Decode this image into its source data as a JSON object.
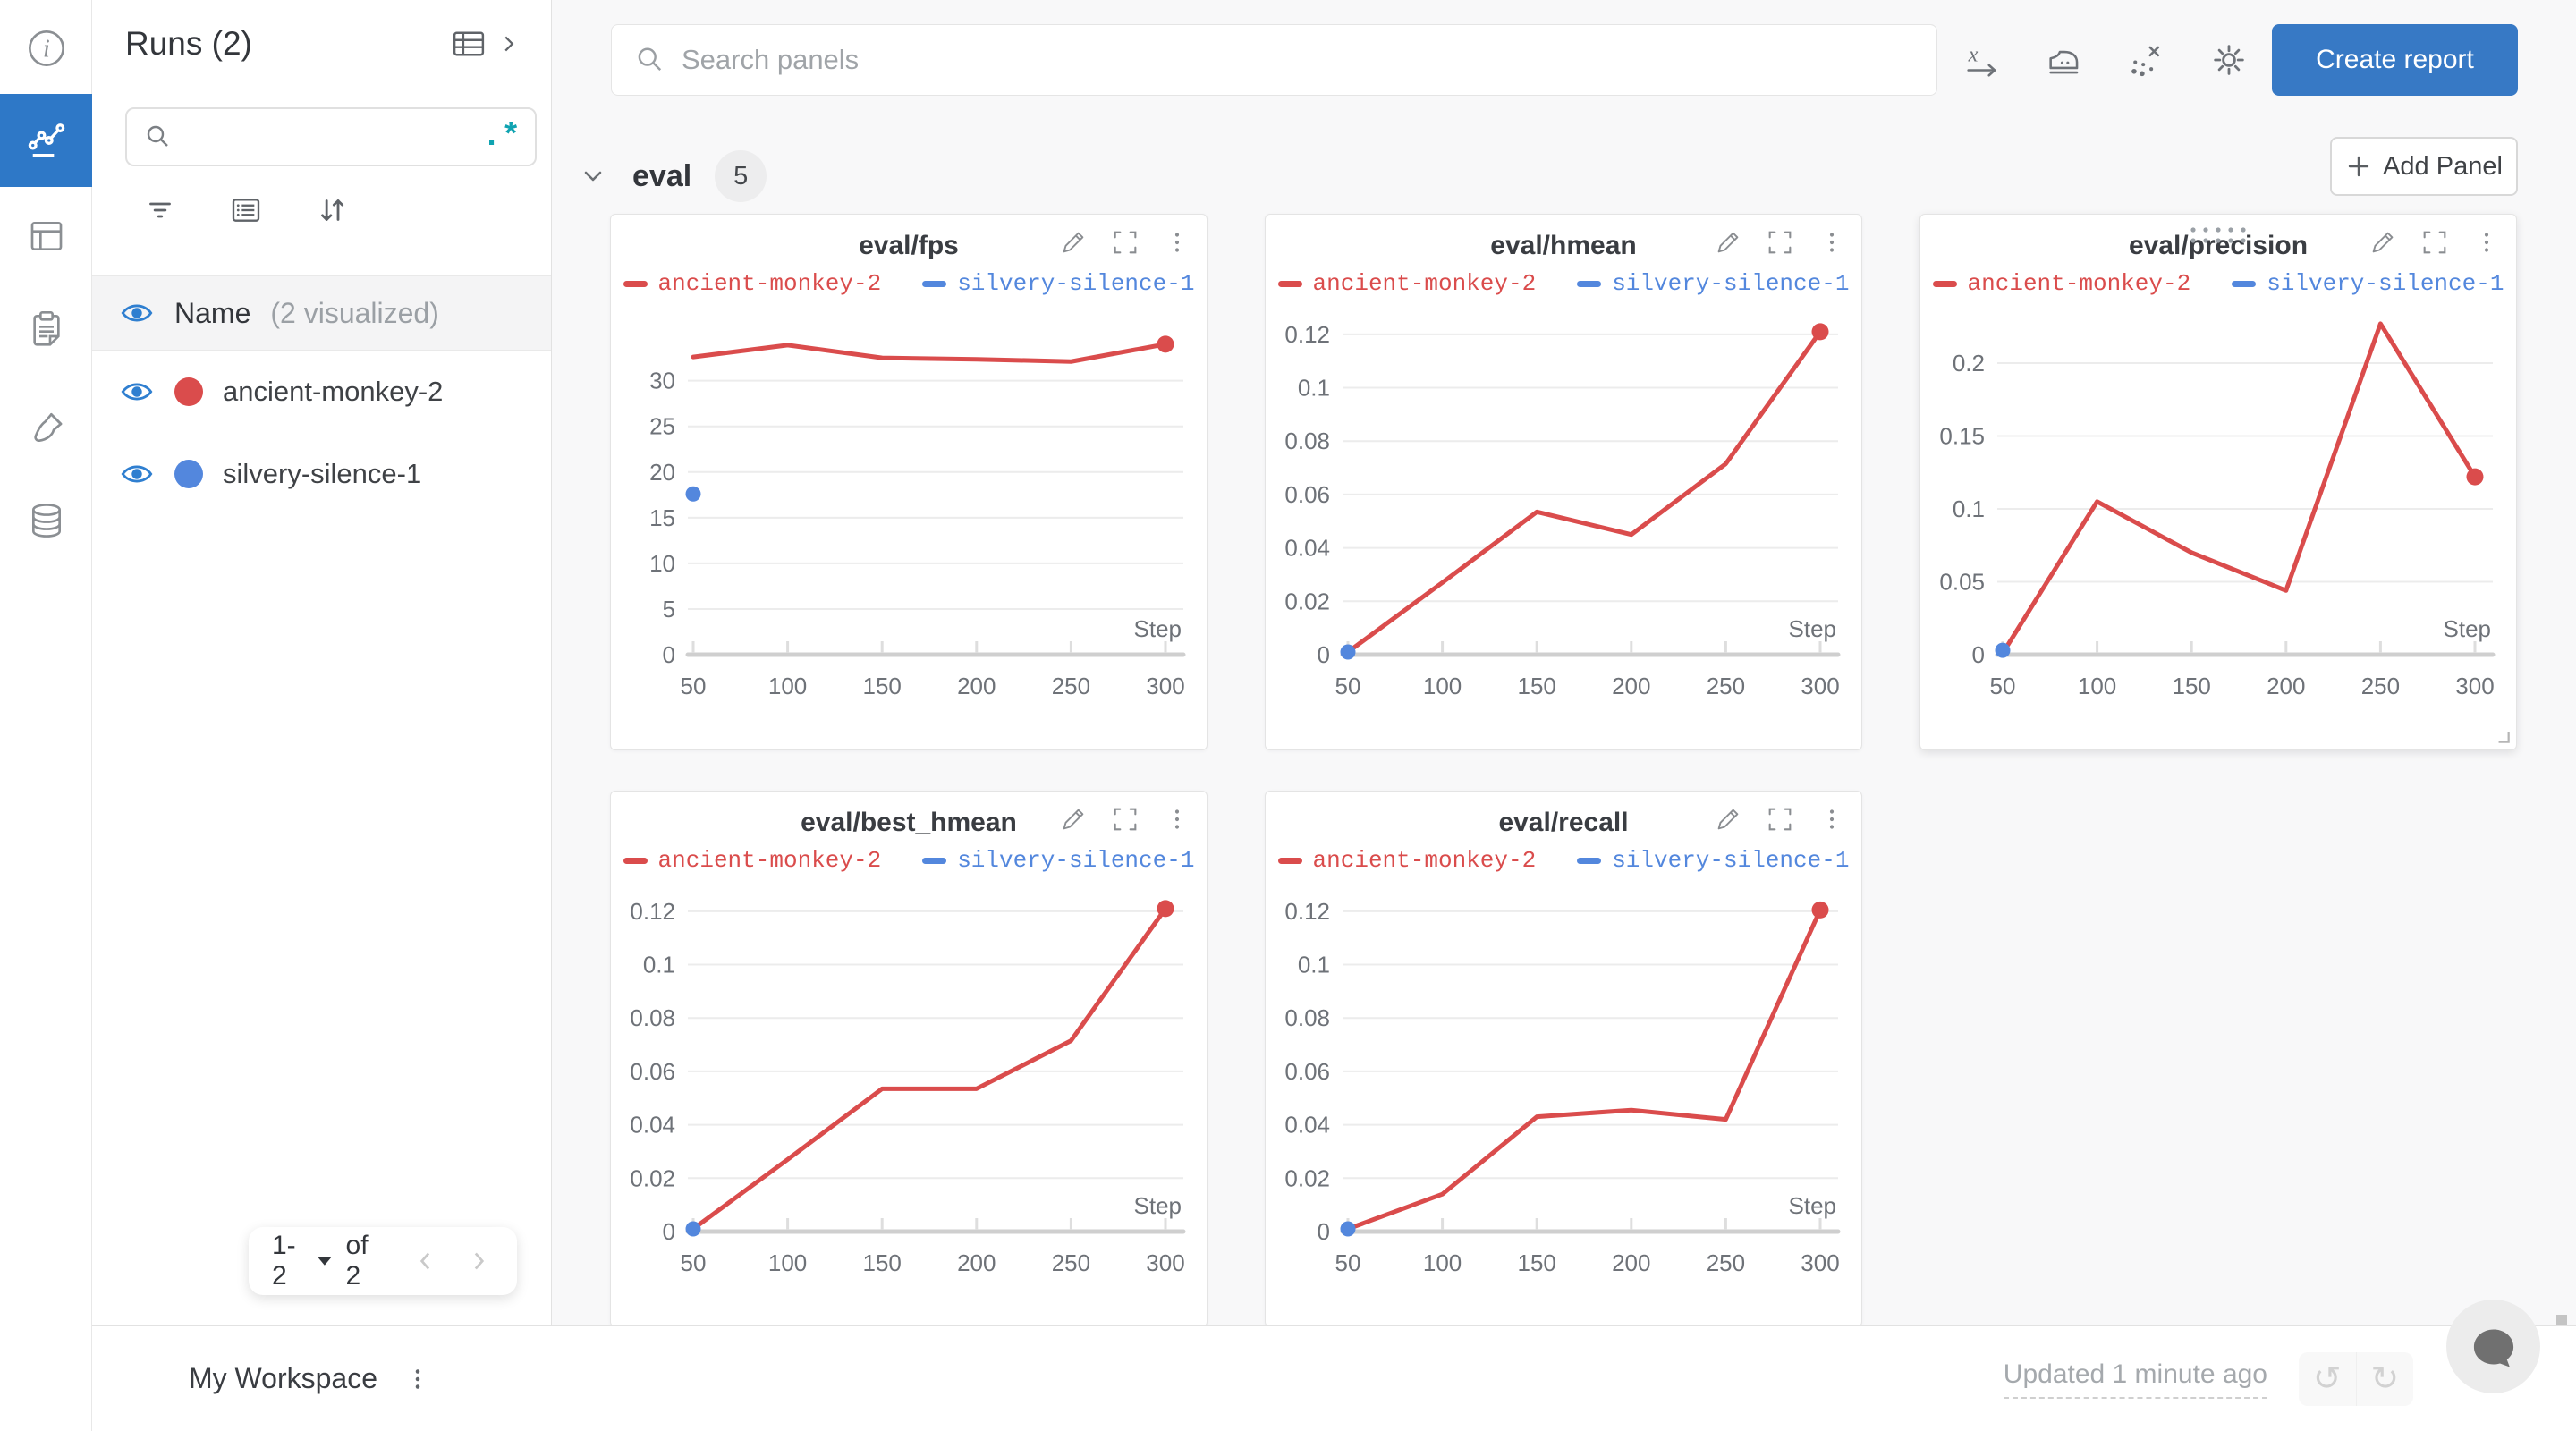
{
  "rail": {
    "items": [
      "info",
      "workspace-charts",
      "table",
      "logs",
      "sweeps-brush",
      "artifacts-database"
    ],
    "active_index": 1,
    "active_color": "#2e78c7"
  },
  "sidebar": {
    "title": "Runs (2)",
    "search_value": "",
    "regex_label": ".*",
    "visible_header": {
      "label": "Name",
      "sublabel": "(2 visualized)"
    },
    "runs": [
      {
        "name": "ancient-monkey-2",
        "color": "#da4c4c"
      },
      {
        "name": "silvery-silence-1",
        "color": "#5387dd"
      }
    ],
    "pagination": {
      "range": "1-2",
      "of": "of 2"
    }
  },
  "topbar": {
    "search_placeholder": "Search panels",
    "create_report_label": "Create report",
    "icons": [
      "x-axis",
      "panel-settings-iron",
      "outliers-scatter",
      "settings-gear"
    ]
  },
  "section": {
    "name": "eval",
    "count": "5",
    "add_panel_label": "Add Panel"
  },
  "footer": {
    "workspace": "My Workspace",
    "updated": "Updated 1 minute ago"
  },
  "colors": {
    "accent_blue": "#2e78c7",
    "button_blue": "#3779c5",
    "series_red": "#da4c4c",
    "series_blue": "#5387dd",
    "teal_regex": "#0fa3b1",
    "grid_line": "#ececec",
    "axis_line": "#cfcfcf",
    "tick_text": "#6e7278"
  },
  "chart_data": [
    {
      "type": "line",
      "title": "eval/fps",
      "xlabel": "Step",
      "grid": true,
      "legend_position": "top",
      "x": [
        50,
        100,
        150,
        200,
        250,
        300
      ],
      "xlim": [
        50,
        300
      ],
      "ylim": [
        0,
        38
      ],
      "yticks": [
        {
          "v": 0,
          "label": "0"
        },
        {
          "v": 5,
          "label": "5"
        },
        {
          "v": 10,
          "label": "10"
        },
        {
          "v": 15,
          "label": "15"
        },
        {
          "v": 20,
          "label": "20"
        },
        {
          "v": 25,
          "label": "25"
        },
        {
          "v": 30,
          "label": "30"
        }
      ],
      "series": [
        {
          "name": "ancient-monkey-2",
          "color": "#da4c4c",
          "points": [
            [
              50,
              32.6
            ],
            [
              100,
              33.9
            ],
            [
              150,
              32.5
            ],
            [
              200,
              32.35
            ],
            [
              250,
              32.1
            ],
            [
              300,
              34.0
            ]
          ],
          "end_dot": true
        },
        {
          "name": "silvery-silence-1",
          "color": "#5387dd",
          "points": [
            [
              50,
              17.6
            ]
          ],
          "dot_only": true
        }
      ],
      "hover_controls": false
    },
    {
      "type": "line",
      "title": "eval/hmean",
      "xlabel": "Step",
      "grid": true,
      "legend_position": "top",
      "x": [
        50,
        100,
        150,
        200,
        250,
        300
      ],
      "xlim": [
        50,
        300
      ],
      "ylim": [
        0,
        0.13
      ],
      "yticks": [
        {
          "v": 0,
          "label": "0"
        },
        {
          "v": 0.02,
          "label": "0.02"
        },
        {
          "v": 0.04,
          "label": "0.04"
        },
        {
          "v": 0.06,
          "label": "0.06"
        },
        {
          "v": 0.08,
          "label": "0.08"
        },
        {
          "v": 0.1,
          "label": "0.1"
        },
        {
          "v": 0.12,
          "label": "0.12"
        }
      ],
      "series": [
        {
          "name": "ancient-monkey-2",
          "color": "#da4c4c",
          "points": [
            [
              50,
              0.001
            ],
            [
              100,
              0.027
            ],
            [
              150,
              0.0535
            ],
            [
              200,
              0.045
            ],
            [
              250,
              0.0715
            ],
            [
              300,
              0.121
            ]
          ],
          "end_dot": true
        },
        {
          "name": "silvery-silence-1",
          "color": "#5387dd",
          "points": [
            [
              50,
              0.001
            ]
          ],
          "dot_only": true
        }
      ],
      "hover_controls": false
    },
    {
      "type": "line",
      "title": "eval/precision",
      "xlabel": "Step",
      "grid": true,
      "legend_position": "top",
      "x": [
        50,
        100,
        150,
        200,
        250,
        300
      ],
      "xlim": [
        50,
        300
      ],
      "ylim": [
        0,
        0.238
      ],
      "yticks": [
        {
          "v": 0,
          "label": "0"
        },
        {
          "v": 0.05,
          "label": "0.05"
        },
        {
          "v": 0.1,
          "label": "0.1"
        },
        {
          "v": 0.15,
          "label": "0.15"
        },
        {
          "v": 0.2,
          "label": "0.2"
        }
      ],
      "series": [
        {
          "name": "ancient-monkey-2",
          "color": "#da4c4c",
          "points": [
            [
              50,
              0.001
            ],
            [
              100,
              0.105
            ],
            [
              150,
              0.07
            ],
            [
              200,
              0.044
            ],
            [
              250,
              0.227
            ],
            [
              300,
              0.122
            ]
          ],
          "end_dot": true
        },
        {
          "name": "silvery-silence-1",
          "color": "#5387dd",
          "points": [
            [
              50,
              0.003
            ]
          ],
          "dot_only": true
        }
      ],
      "hover_controls": true
    },
    {
      "type": "line",
      "title": "eval/best_hmean",
      "xlabel": "Step",
      "grid": true,
      "legend_position": "top",
      "x": [
        50,
        100,
        150,
        200,
        250,
        300
      ],
      "xlim": [
        50,
        300
      ],
      "ylim": [
        0,
        0.13
      ],
      "yticks": [
        {
          "v": 0,
          "label": "0"
        },
        {
          "v": 0.02,
          "label": "0.02"
        },
        {
          "v": 0.04,
          "label": "0.04"
        },
        {
          "v": 0.06,
          "label": "0.06"
        },
        {
          "v": 0.08,
          "label": "0.08"
        },
        {
          "v": 0.1,
          "label": "0.1"
        },
        {
          "v": 0.12,
          "label": "0.12"
        }
      ],
      "series": [
        {
          "name": "ancient-monkey-2",
          "color": "#da4c4c",
          "points": [
            [
              50,
              0.001
            ],
            [
              100,
              0.027
            ],
            [
              150,
              0.0535
            ],
            [
              200,
              0.0535
            ],
            [
              250,
              0.0715
            ],
            [
              300,
              0.121
            ]
          ],
          "end_dot": true
        },
        {
          "name": "silvery-silence-1",
          "color": "#5387dd",
          "points": [
            [
              50,
              0.001
            ]
          ],
          "dot_only": true
        }
      ],
      "hover_controls": false
    },
    {
      "type": "line",
      "title": "eval/recall",
      "xlabel": "Step",
      "grid": true,
      "legend_position": "top",
      "x": [
        50,
        100,
        150,
        200,
        250,
        300
      ],
      "xlim": [
        50,
        300
      ],
      "ylim": [
        0,
        0.13
      ],
      "yticks": [
        {
          "v": 0,
          "label": "0"
        },
        {
          "v": 0.02,
          "label": "0.02"
        },
        {
          "v": 0.04,
          "label": "0.04"
        },
        {
          "v": 0.06,
          "label": "0.06"
        },
        {
          "v": 0.08,
          "label": "0.08"
        },
        {
          "v": 0.1,
          "label": "0.1"
        },
        {
          "v": 0.12,
          "label": "0.12"
        }
      ],
      "series": [
        {
          "name": "ancient-monkey-2",
          "color": "#da4c4c",
          "points": [
            [
              50,
              0.001
            ],
            [
              100,
              0.014
            ],
            [
              150,
              0.043
            ],
            [
              200,
              0.0455
            ],
            [
              250,
              0.042
            ],
            [
              300,
              0.1205
            ]
          ],
          "end_dot": true
        },
        {
          "name": "silvery-silence-1",
          "color": "#5387dd",
          "points": [
            [
              50,
              0.001
            ]
          ],
          "dot_only": true
        }
      ],
      "hover_controls": false
    }
  ]
}
